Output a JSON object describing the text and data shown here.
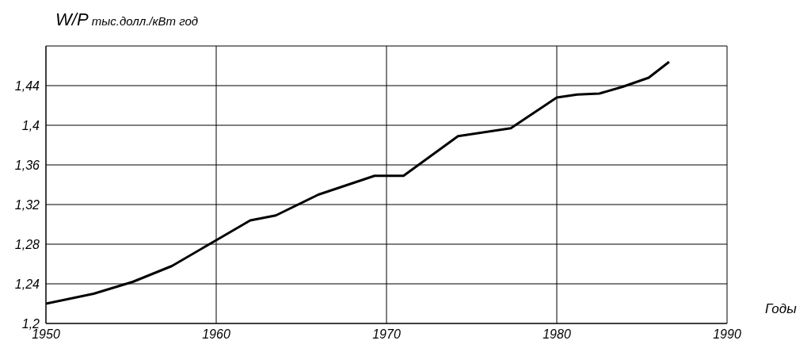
{
  "chart_data": {
    "type": "line",
    "xlabel": "Годы",
    "ylabel": "W/P тыс.долл./кВт год",
    "x": [
      1950,
      1952.8,
      1955.1,
      1957.4,
      1960,
      1962,
      1963.5,
      1966,
      1969.3,
      1971,
      1974.2,
      1977.3,
      1980,
      1981.2,
      1982.5,
      1983.9,
      1985.4,
      1986.6
    ],
    "series": [
      {
        "color": "#000000",
        "values": [
          1.22,
          1.23,
          1.242,
          1.258,
          1.284,
          1.304,
          1.309,
          1.33,
          1.349,
          1.349,
          1.389,
          1.397,
          1.428,
          1.431,
          1.432,
          1.439,
          1.448,
          1.464
        ]
      }
    ],
    "xlim": [
      1950,
      1990
    ],
    "xticks": [
      1950,
      1960,
      1970,
      1980,
      1990
    ],
    "ylim": [
      1.2,
      1.48
    ],
    "yticks": [
      {
        "value": 1.2,
        "label": "1,2"
      },
      {
        "value": 1.24,
        "label": "1,24"
      },
      {
        "value": 1.28,
        "label": "1,28"
      },
      {
        "value": 1.32,
        "label": "1,32"
      },
      {
        "value": 1.36,
        "label": "1,36"
      },
      {
        "value": 1.4,
        "label": "1,4"
      },
      {
        "value": 1.44,
        "label": "1,44"
      },
      {
        "value": 1.48,
        "label": null
      }
    ],
    "grid": true
  }
}
